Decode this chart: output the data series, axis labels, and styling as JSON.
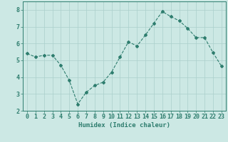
{
  "x": [
    0,
    1,
    2,
    3,
    4,
    5,
    6,
    7,
    8,
    9,
    10,
    11,
    12,
    13,
    14,
    15,
    16,
    17,
    18,
    19,
    20,
    21,
    22,
    23
  ],
  "y": [
    5.4,
    5.2,
    5.3,
    5.3,
    4.7,
    3.8,
    2.4,
    3.1,
    3.5,
    3.7,
    4.3,
    5.2,
    6.1,
    5.85,
    6.5,
    7.2,
    7.9,
    7.6,
    7.35,
    6.9,
    6.35,
    6.35,
    5.45,
    4.65
  ],
  "line_color": "#2e7d6e",
  "marker": "D",
  "marker_size": 2.0,
  "bg_color": "#cce8e4",
  "grid_color": "#aacfcb",
  "axis_color": "#2e7d6e",
  "xlabel": "Humidex (Indice chaleur)",
  "xlim": [
    -0.5,
    23.5
  ],
  "ylim": [
    2,
    8.5
  ],
  "yticks": [
    2,
    3,
    4,
    5,
    6,
    7,
    8
  ],
  "xticks": [
    0,
    1,
    2,
    3,
    4,
    5,
    6,
    7,
    8,
    9,
    10,
    11,
    12,
    13,
    14,
    15,
    16,
    17,
    18,
    19,
    20,
    21,
    22,
    23
  ],
  "xlabel_fontsize": 6.5,
  "tick_fontsize": 6.0,
  "linewidth": 0.8
}
